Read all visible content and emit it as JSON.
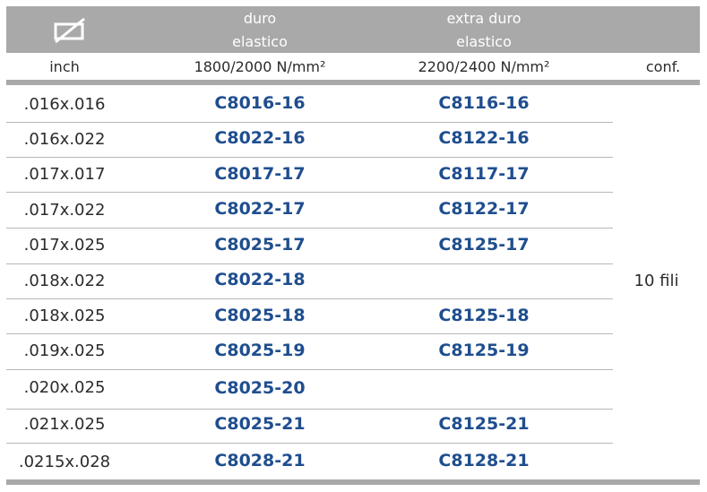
{
  "header": {
    "col1_line1": "duro",
    "col1_line2": "elastico",
    "col2_line1": "extra duro",
    "col2_line2": "elastico",
    "icon": "wire-cross-section-icon"
  },
  "subheader": {
    "inch": "inch",
    "col1": "1800/2000 N/mm²",
    "col2": "2200/2400 N/mm²",
    "conf": "conf."
  },
  "rows": [
    {
      "inch": ".016x.016",
      "c1": "C8016-16",
      "c2": "C8116-16"
    },
    {
      "inch": ".016x.022",
      "c1": "C8022-16",
      "c2": "C8122-16"
    },
    {
      "inch": ".017x.017",
      "c1": "C8017-17",
      "c2": "C8117-17"
    },
    {
      "inch": ".017x.022",
      "c1": "C8022-17",
      "c2": "C8122-17"
    },
    {
      "inch": ".017x.025",
      "c1": "C8025-17",
      "c2": "C8125-17"
    },
    {
      "inch": ".018x.022",
      "c1": "C8022-18",
      "c2": ""
    },
    {
      "inch": ".018x.025",
      "c1": "C8025-18",
      "c2": "C8125-18"
    },
    {
      "inch": ".019x.025",
      "c1": "C8025-19",
      "c2": "C8125-19"
    },
    {
      "inch": ".020x.025",
      "c1": "C8025-20",
      "c2": ""
    },
    {
      "inch": ".021x.025",
      "c1": "C8025-21",
      "c2": "C8125-21"
    },
    {
      "inch": ".0215x.028",
      "c1": "C8028-21",
      "c2": "C8128-21"
    }
  ],
  "conf_value": "10 fili",
  "colors": {
    "band": "#a9a9a9",
    "code": "#1f4e8f"
  }
}
